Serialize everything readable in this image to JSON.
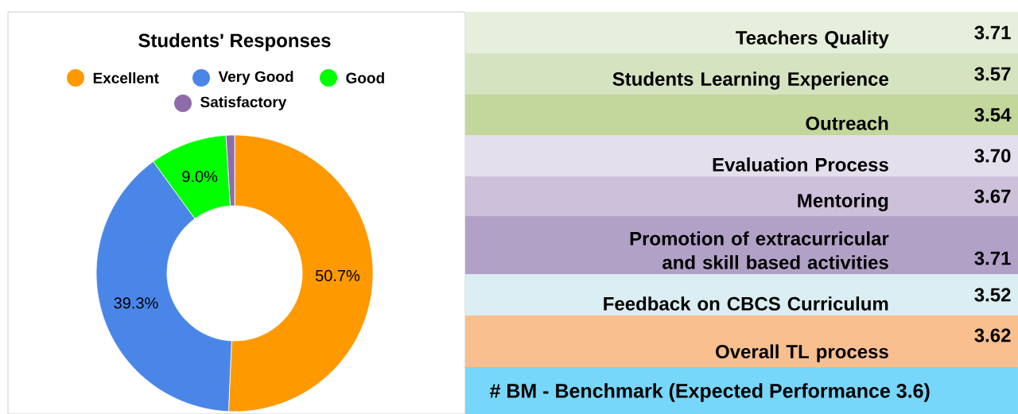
{
  "chart_data": [
    {
      "type": "donut",
      "title": "Students' Responses",
      "legend": "top",
      "categories": [
        "Excellent",
        "Very Good",
        "Good",
        "Satisfactory"
      ],
      "values": [
        50.7,
        39.3,
        9.0,
        1.0
      ],
      "value_labels": [
        "50.7%",
        "39.3%",
        "9.0%",
        null
      ],
      "colors": [
        "#ff9900",
        "#4a86e8",
        "#00ff00",
        "#8e6bab"
      ]
    },
    {
      "type": "other",
      "categories": [
        "Teachers Quality",
        "Students Learning Experience",
        "Outreach",
        "Evaluation Process",
        "Mentoring",
        "Promotion of extracurricular and skill based activities",
        "Feedback on CBCS Curriculum",
        "Overall TL process"
      ],
      "values": [
        3.71,
        3.57,
        3.54,
        3.7,
        3.67,
        3.71,
        3.52,
        3.62
      ],
      "value_labels": [
        "3.71",
        "3.57",
        "3.54",
        "3.70",
        "3.67",
        "3.71",
        "3.52",
        "3.62"
      ],
      "colors": [
        "#e6efdc",
        "#d5e3c1",
        "#c3d69b",
        "#e3dfec",
        "#ccc0da",
        "#b2a1c7",
        "#daeef3",
        "#f9bf8f"
      ],
      "annotations": [
        "# BM - Benchmark (Expected Performance 3.6)"
      ]
    }
  ]
}
